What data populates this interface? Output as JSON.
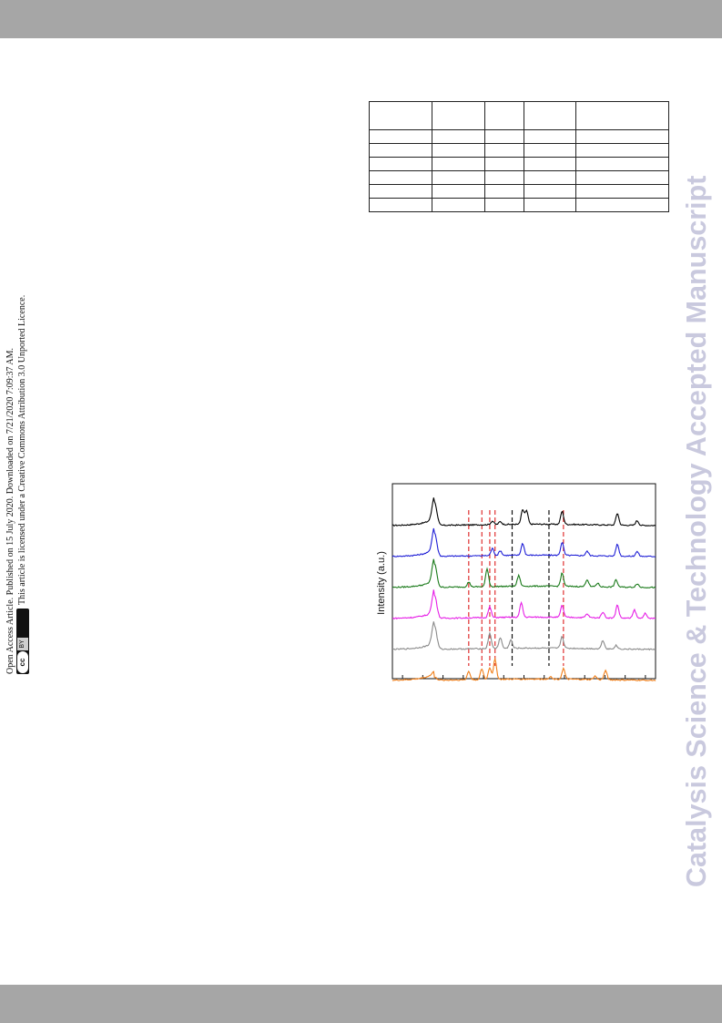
{
  "license": {
    "line1": "Open Access Article. Published on 15 July 2020. Downloaded on 7/21/2020 7:09:37 AM.",
    "line2": "This article is licensed under a Creative Commons Attribution 3.0 Unported Licence.",
    "badge_cc": "cc",
    "badge_by": "BY"
  },
  "watermark": "Catalysis Science & Technology Accepted Manuscript",
  "table": {
    "columns": 5,
    "header_rows": 1,
    "body_rows": 6
  },
  "chart_data": {
    "type": "line",
    "ylabel": "Intensity (a.u.)",
    "xlabel": "",
    "x_ticks": 13,
    "series": [
      {
        "color": "#000000",
        "peaks": [
          [
            0.16,
            1.0
          ],
          [
            0.38,
            0.15
          ],
          [
            0.41,
            0.12
          ],
          [
            0.495,
            0.6
          ],
          [
            0.51,
            0.55
          ],
          [
            0.645,
            0.55
          ],
          [
            0.855,
            0.5
          ],
          [
            0.93,
            0.2
          ]
        ]
      },
      {
        "color": "#1f1fd6",
        "peaks": [
          [
            0.16,
            1.0
          ],
          [
            0.38,
            0.3
          ],
          [
            0.41,
            0.2
          ],
          [
            0.495,
            0.5
          ],
          [
            0.645,
            0.55
          ],
          [
            0.74,
            0.18
          ],
          [
            0.855,
            0.5
          ],
          [
            0.93,
            0.2
          ]
        ]
      },
      {
        "color": "#1a7a1a",
        "peaks": [
          [
            0.16,
            1.0
          ],
          [
            0.29,
            0.2
          ],
          [
            0.36,
            0.75
          ],
          [
            0.48,
            0.45
          ],
          [
            0.645,
            0.55
          ],
          [
            0.74,
            0.3
          ],
          [
            0.78,
            0.15
          ],
          [
            0.85,
            0.3
          ],
          [
            0.93,
            0.15
          ]
        ]
      },
      {
        "color": "#e61ee6",
        "peaks": [
          [
            0.16,
            1.0
          ],
          [
            0.37,
            0.45
          ],
          [
            0.49,
            0.6
          ],
          [
            0.645,
            0.5
          ],
          [
            0.74,
            0.15
          ],
          [
            0.8,
            0.25
          ],
          [
            0.855,
            0.55
          ],
          [
            0.92,
            0.35
          ],
          [
            0.96,
            0.2
          ]
        ]
      },
      {
        "color": "#8a8a8a",
        "peaks": [
          [
            0.16,
            1.0
          ],
          [
            0.37,
            0.65
          ],
          [
            0.41,
            0.45
          ],
          [
            0.45,
            0.35
          ],
          [
            0.645,
            0.5
          ],
          [
            0.8,
            0.35
          ],
          [
            0.85,
            0.15
          ]
        ]
      },
      {
        "color": "#f07f1a",
        "peaks": [
          [
            0.16,
            0.12
          ],
          [
            0.29,
            0.35
          ],
          [
            0.34,
            0.45
          ],
          [
            0.37,
            0.5
          ],
          [
            0.39,
            0.85
          ],
          [
            0.6,
            0.1
          ],
          [
            0.65,
            0.45
          ],
          [
            0.77,
            0.15
          ],
          [
            0.81,
            0.4
          ]
        ]
      }
    ],
    "reference_lines": [
      {
        "color": "#e03030",
        "x": [
          0.29,
          0.34,
          0.37,
          0.39,
          0.65
        ]
      },
      {
        "color": "#111111",
        "x": [
          0.455,
          0.595
        ]
      }
    ]
  }
}
